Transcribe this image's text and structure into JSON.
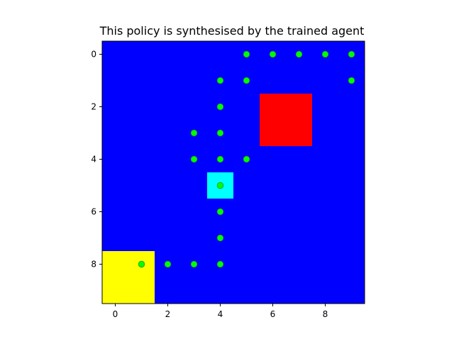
{
  "chart_data": {
    "type": "heatmap",
    "title": "This policy is synthesised by the trained agent",
    "xlabel": "",
    "ylabel": "",
    "grid_size": 10,
    "xlim": [
      -0.5,
      9.5
    ],
    "ylim": [
      9.5,
      -0.5
    ],
    "x_ticks": [
      0,
      2,
      4,
      6,
      8
    ],
    "y_ticks": [
      0,
      2,
      4,
      6,
      8
    ],
    "background_color": "#0000ff",
    "regions": [
      {
        "color": "#ff0000",
        "x": [
          6,
          7
        ],
        "y": [
          2,
          3
        ]
      },
      {
        "color": "#00ffff",
        "x": [
          4,
          4
        ],
        "y": [
          5,
          5
        ]
      },
      {
        "color": "#ffff00",
        "x": [
          0,
          1
        ],
        "y": [
          8,
          9
        ]
      }
    ],
    "path_marker_color": "#00ff00",
    "path_points": [
      {
        "x": 5,
        "y": 0
      },
      {
        "x": 6,
        "y": 0
      },
      {
        "x": 7,
        "y": 0
      },
      {
        "x": 8,
        "y": 0
      },
      {
        "x": 9,
        "y": 0
      },
      {
        "x": 4,
        "y": 1
      },
      {
        "x": 5,
        "y": 1
      },
      {
        "x": 9,
        "y": 1
      },
      {
        "x": 4,
        "y": 2
      },
      {
        "x": 3,
        "y": 3
      },
      {
        "x": 4,
        "y": 3
      },
      {
        "x": 3,
        "y": 4
      },
      {
        "x": 4,
        "y": 4
      },
      {
        "x": 5,
        "y": 4
      },
      {
        "x": 4,
        "y": 5
      },
      {
        "x": 4,
        "y": 6
      },
      {
        "x": 4,
        "y": 7
      },
      {
        "x": 1,
        "y": 8
      },
      {
        "x": 2,
        "y": 8
      },
      {
        "x": 3,
        "y": 8
      },
      {
        "x": 4,
        "y": 8
      }
    ]
  }
}
